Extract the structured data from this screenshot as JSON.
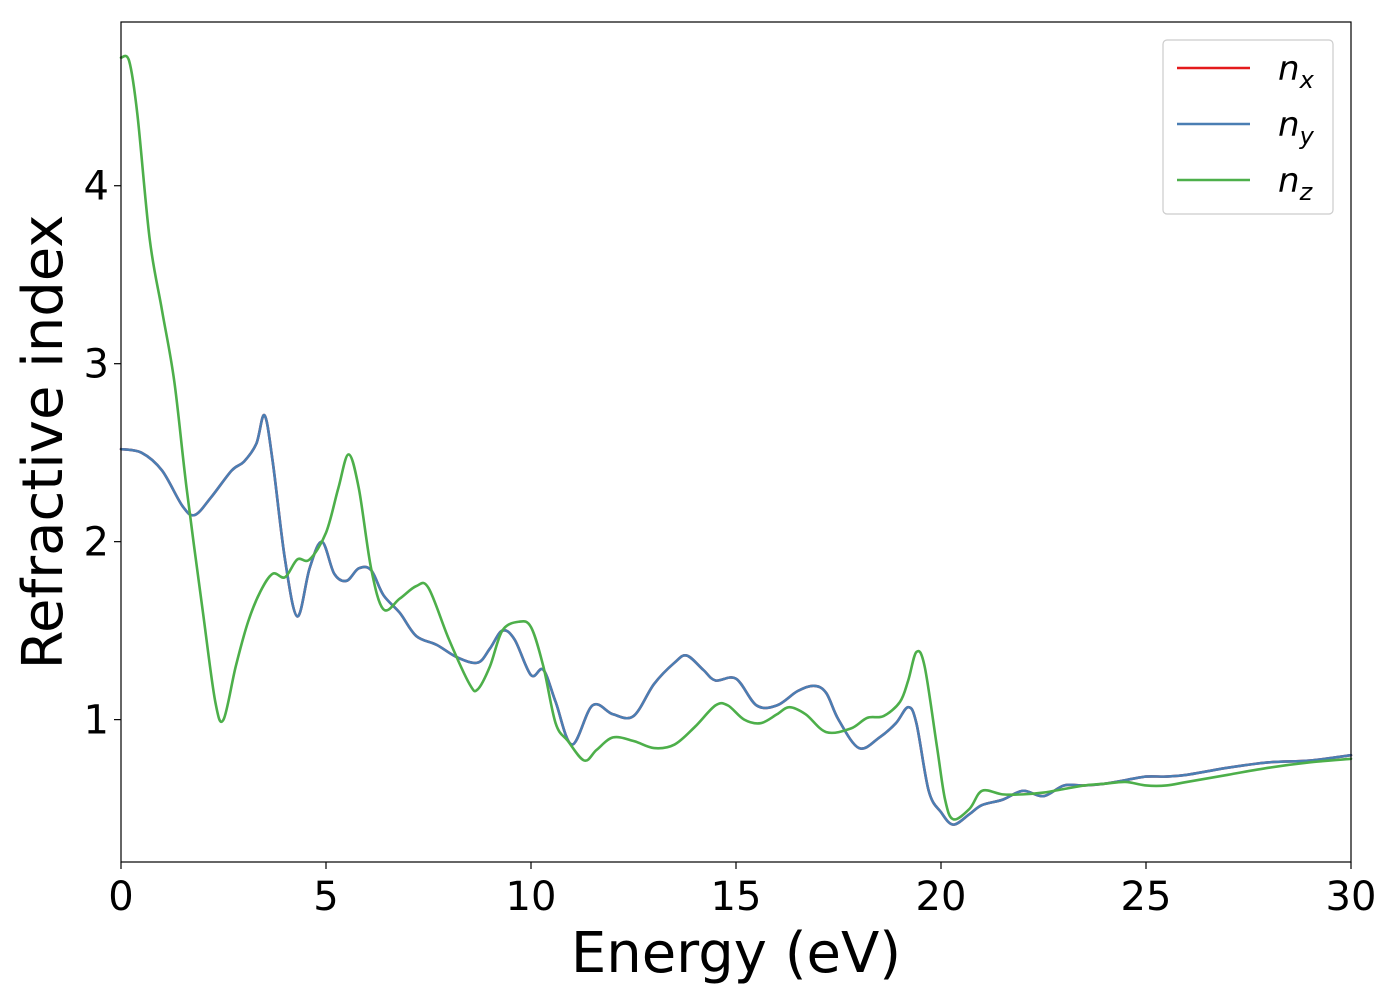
{
  "chart_data": {
    "type": "line",
    "title": "",
    "xlabel": "Energy (eV)",
    "ylabel": "Refractive index",
    "xlim": [
      0,
      30
    ],
    "ylim": [
      0.2,
      4.92
    ],
    "xticks": [
      0,
      5,
      10,
      15,
      20,
      25,
      30
    ],
    "xtick_labels": [
      "0",
      "5",
      "10",
      "15",
      "20",
      "25",
      "30"
    ],
    "yticks": [
      1,
      2,
      3,
      4
    ],
    "ytick_labels": [
      "1",
      "2",
      "3",
      "4"
    ],
    "grid": false,
    "legend_position": "top-right",
    "series": [
      {
        "name": "n",
        "subscript": "x",
        "color": "#e41a1c",
        "x": [
          0,
          0.5,
          1,
          1.5,
          1.8,
          2.2,
          2.7,
          3.0,
          3.3,
          3.5,
          3.7,
          4.0,
          4.3,
          4.6,
          4.9,
          5.2,
          5.5,
          5.8,
          6.1,
          6.4,
          6.8,
          7.2,
          7.7,
          8.2,
          8.7,
          9.0,
          9.3,
          9.6,
          10.0,
          10.3,
          10.6,
          11.0,
          11.5,
          12.0,
          12.5,
          13.0,
          13.5,
          13.8,
          14.2,
          14.5,
          15.0,
          15.5,
          16.0,
          16.5,
          16.9,
          17.2,
          17.5,
          18.0,
          18.5,
          18.9,
          19.2,
          19.4,
          19.7,
          20.0,
          20.3,
          20.7,
          21.0,
          21.5,
          22.0,
          22.5,
          23.0,
          23.5,
          24.0,
          24.5,
          25.0,
          25.5,
          26.0,
          27.0,
          28.0,
          29.0,
          30.0
        ],
        "y": [
          2.52,
          2.5,
          2.4,
          2.2,
          2.15,
          2.25,
          2.4,
          2.45,
          2.55,
          2.71,
          2.45,
          1.9,
          1.58,
          1.85,
          2.0,
          1.82,
          1.78,
          1.85,
          1.84,
          1.7,
          1.6,
          1.47,
          1.42,
          1.35,
          1.32,
          1.4,
          1.5,
          1.45,
          1.25,
          1.28,
          1.1,
          0.86,
          1.08,
          1.03,
          1.02,
          1.2,
          1.32,
          1.36,
          1.28,
          1.22,
          1.23,
          1.08,
          1.08,
          1.16,
          1.19,
          1.15,
          1.0,
          0.84,
          0.9,
          0.98,
          1.07,
          0.98,
          0.6,
          0.48,
          0.41,
          0.47,
          0.52,
          0.55,
          0.6,
          0.57,
          0.63,
          0.63,
          0.64,
          0.66,
          0.68,
          0.68,
          0.69,
          0.73,
          0.76,
          0.77,
          0.8
        ]
      },
      {
        "name": "n",
        "subscript": "y",
        "color": "#4a7eb3",
        "x": [
          0,
          0.5,
          1,
          1.5,
          1.8,
          2.2,
          2.7,
          3.0,
          3.3,
          3.5,
          3.7,
          4.0,
          4.3,
          4.6,
          4.9,
          5.2,
          5.5,
          5.8,
          6.1,
          6.4,
          6.8,
          7.2,
          7.7,
          8.2,
          8.7,
          9.0,
          9.3,
          9.6,
          10.0,
          10.3,
          10.6,
          11.0,
          11.5,
          12.0,
          12.5,
          13.0,
          13.5,
          13.8,
          14.2,
          14.5,
          15.0,
          15.5,
          16.0,
          16.5,
          16.9,
          17.2,
          17.5,
          18.0,
          18.5,
          18.9,
          19.2,
          19.4,
          19.7,
          20.0,
          20.3,
          20.7,
          21.0,
          21.5,
          22.0,
          22.5,
          23.0,
          23.5,
          24.0,
          24.5,
          25.0,
          25.5,
          26.0,
          27.0,
          28.0,
          29.0,
          30.0
        ],
        "y": [
          2.52,
          2.5,
          2.4,
          2.2,
          2.15,
          2.25,
          2.4,
          2.45,
          2.55,
          2.71,
          2.45,
          1.9,
          1.58,
          1.85,
          2.0,
          1.82,
          1.78,
          1.85,
          1.84,
          1.7,
          1.6,
          1.47,
          1.42,
          1.35,
          1.32,
          1.4,
          1.5,
          1.45,
          1.25,
          1.28,
          1.1,
          0.86,
          1.08,
          1.03,
          1.02,
          1.2,
          1.32,
          1.36,
          1.28,
          1.22,
          1.23,
          1.08,
          1.08,
          1.16,
          1.19,
          1.15,
          1.0,
          0.84,
          0.9,
          0.98,
          1.07,
          0.98,
          0.6,
          0.48,
          0.41,
          0.47,
          0.52,
          0.55,
          0.6,
          0.57,
          0.63,
          0.63,
          0.64,
          0.66,
          0.68,
          0.68,
          0.69,
          0.73,
          0.76,
          0.77,
          0.8
        ]
      },
      {
        "name": "n",
        "subscript": "z",
        "color": "#4daf4a",
        "x": [
          0,
          0.2,
          0.4,
          0.7,
          1.0,
          1.3,
          1.6,
          2.0,
          2.3,
          2.5,
          2.8,
          3.1,
          3.4,
          3.7,
          4.0,
          4.3,
          4.6,
          5.0,
          5.3,
          5.55,
          5.8,
          6.1,
          6.4,
          6.8,
          7.2,
          7.5,
          8.0,
          8.5,
          8.7,
          9.0,
          9.3,
          9.7,
          10.0,
          10.3,
          10.6,
          10.9,
          11.3,
          11.6,
          12.0,
          12.5,
          13.0,
          13.5,
          14.0,
          14.5,
          14.8,
          15.2,
          15.6,
          16.0,
          16.3,
          16.7,
          17.2,
          17.8,
          18.2,
          18.6,
          19.0,
          19.2,
          19.4,
          19.6,
          19.9,
          20.1,
          20.3,
          20.7,
          21.0,
          21.5,
          22.0,
          22.5,
          23.0,
          23.5,
          24.0,
          24.5,
          25.0,
          25.5,
          26.0,
          27.0,
          28.0,
          29.0,
          30.0
        ],
        "y": [
          4.72,
          4.7,
          4.4,
          3.7,
          3.3,
          2.9,
          2.3,
          1.6,
          1.1,
          1.0,
          1.3,
          1.55,
          1.72,
          1.82,
          1.8,
          1.9,
          1.9,
          2.05,
          2.3,
          2.49,
          2.3,
          1.85,
          1.62,
          1.68,
          1.75,
          1.74,
          1.45,
          1.2,
          1.17,
          1.3,
          1.5,
          1.55,
          1.52,
          1.3,
          0.98,
          0.88,
          0.77,
          0.83,
          0.9,
          0.88,
          0.84,
          0.86,
          0.96,
          1.08,
          1.08,
          1.0,
          0.98,
          1.03,
          1.07,
          1.03,
          0.93,
          0.95,
          1.01,
          1.02,
          1.1,
          1.22,
          1.38,
          1.3,
          0.85,
          0.55,
          0.44,
          0.5,
          0.6,
          0.58,
          0.58,
          0.59,
          0.61,
          0.63,
          0.64,
          0.65,
          0.63,
          0.63,
          0.65,
          0.69,
          0.73,
          0.76,
          0.78
        ]
      }
    ]
  }
}
